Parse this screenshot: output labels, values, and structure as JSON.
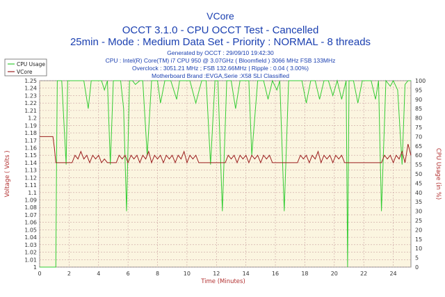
{
  "chart_data": {
    "type": "line",
    "title": "VCore",
    "subtitle": "OCCT 3.1.0 - CPU OCCT Test - Cancelled",
    "subtitle2": "25min - Mode : Medium Data Set - Priority : NORMAL - 8 threads",
    "info_lines": [
      "Generated by OCCT : 29/09/10 19:42:30",
      "CPU : Intel(R) Core(TM) i7 CPU 950 @ 3.07GHz ( Bloomfield ) 3066 MHz FSB 133MHz",
      "Overclock : 3051.21 MHz ; FSB 132.66MHz | Ripple : 0.04 ( 3.00%)",
      "Motherboard Brand :EVGA,Serie :X58 SLI Classified"
    ],
    "xlabel": "Time (Minutes)",
    "ylabel": "Voltage ( Volts )",
    "y2label": "CPU Usage (in %)",
    "xlim": [
      0,
      25.2
    ],
    "ylim": [
      1.0,
      1.25
    ],
    "y2lim": [
      0,
      100
    ],
    "x_ticks": [
      "0",
      "2",
      "4",
      "6",
      "8",
      "10",
      "12",
      "14",
      "16",
      "18",
      "20",
      "22",
      "24"
    ],
    "y_ticks": [
      "1.25",
      "1.24",
      "1.23",
      "1.22",
      "1.21",
      "1.2",
      "1.19",
      "1.18",
      "1.17",
      "1.16",
      "1.15",
      "1.14",
      "1.13",
      "1.12",
      "1.11",
      "1.1",
      "1.09",
      "1.08",
      "1.07",
      "1.06",
      "1.05",
      "1.04",
      "1.03",
      "1.02",
      "1.01",
      "1"
    ],
    "y2_ticks": [
      "100",
      "95",
      "90",
      "85",
      "80",
      "75",
      "70",
      "65",
      "60",
      "55",
      "50",
      "45",
      "40",
      "35",
      "30",
      "25",
      "20",
      "15",
      "10",
      "5",
      "0"
    ],
    "grid": true,
    "legend_position": "top-left",
    "series": [
      {
        "name": "CPU Usage",
        "axis": "right",
        "color": "#33cc33",
        "x": [
          0,
          1.1,
          1.15,
          1.2,
          1.3,
          1.5,
          1.8,
          1.9,
          2.0,
          2.5,
          3.0,
          3.3,
          3.5,
          3.8,
          4.2,
          4.4,
          4.6,
          4.8,
          5.0,
          5.2,
          5.5,
          5.7,
          5.9,
          6.1,
          6.3,
          6.5,
          6.8,
          7.0,
          7.3,
          7.6,
          8.0,
          8.2,
          8.5,
          8.9,
          9.3,
          9.5,
          9.8,
          10.2,
          10.6,
          11.0,
          11.3,
          11.6,
          11.9,
          12.1,
          12.4,
          12.7,
          13.0,
          13.3,
          13.6,
          13.9,
          14.2,
          14.4,
          14.8,
          15.2,
          15.5,
          15.8,
          16.1,
          16.3,
          16.6,
          16.9,
          17.2,
          17.6,
          17.8,
          18.1,
          18.4,
          18.7,
          19.0,
          19.3,
          19.6,
          19.9,
          20.2,
          20.5,
          20.8,
          20.9,
          21.0,
          21.3,
          21.6,
          21.9,
          22.2,
          22.5,
          22.8,
          23.0,
          23.2,
          23.5,
          23.8,
          24.0,
          24.3,
          24.6,
          24.8,
          25.0,
          25.2
        ],
        "values": [
          0,
          0,
          60,
          100,
          100,
          100,
          55,
          100,
          100,
          100,
          100,
          85,
          100,
          100,
          100,
          95,
          100,
          55,
          100,
          100,
          100,
          85,
          30,
          100,
          100,
          98,
          100,
          100,
          60,
          100,
          100,
          88,
          100,
          100,
          90,
          100,
          100,
          100,
          88,
          100,
          100,
          55,
          100,
          100,
          30,
          100,
          100,
          85,
          100,
          100,
          100,
          60,
          100,
          100,
          90,
          100,
          95,
          100,
          30,
          100,
          100,
          100,
          100,
          88,
          100,
          100,
          90,
          100,
          100,
          92,
          100,
          90,
          100,
          0,
          100,
          100,
          88,
          100,
          100,
          100,
          90,
          100,
          30,
          100,
          97,
          100,
          95,
          55,
          98,
          100,
          100
        ]
      },
      {
        "name": "VCore",
        "axis": "left",
        "color": "#9b1d1d",
        "x": [
          0,
          0.9,
          1.0,
          1.1,
          2.2,
          2.4,
          2.6,
          2.8,
          3.0,
          3.2,
          3.4,
          3.6,
          3.8,
          4.0,
          4.2,
          4.4,
          4.6,
          4.9,
          5.2,
          5.4,
          5.6,
          5.8,
          6.0,
          6.2,
          6.4,
          6.6,
          6.8,
          7.0,
          7.2,
          7.4,
          7.6,
          7.8,
          8.0,
          8.2,
          8.4,
          8.6,
          8.8,
          9.0,
          9.2,
          9.4,
          9.6,
          9.8,
          10.0,
          10.2,
          10.4,
          10.6,
          10.8,
          11.0,
          11.2,
          11.4,
          12.6,
          12.8,
          13.0,
          13.2,
          13.4,
          13.6,
          13.8,
          14.0,
          14.2,
          14.4,
          14.6,
          14.8,
          15.0,
          15.2,
          15.4,
          15.6,
          15.8,
          16.0,
          16.2,
          17.5,
          17.7,
          17.9,
          18.1,
          18.3,
          18.5,
          18.7,
          18.9,
          19.1,
          19.3,
          19.5,
          19.7,
          19.9,
          20.1,
          20.3,
          20.5,
          20.7,
          20.9,
          21.0,
          23.2,
          23.4,
          23.6,
          23.8,
          24.0,
          24.2,
          24.4,
          24.6,
          24.8,
          25.0,
          25.2
        ],
        "values": [
          1.175,
          1.175,
          1.16,
          1.14,
          1.14,
          1.15,
          1.145,
          1.155,
          1.145,
          1.15,
          1.14,
          1.15,
          1.145,
          1.15,
          1.14,
          1.145,
          1.14,
          1.14,
          1.14,
          1.15,
          1.145,
          1.15,
          1.14,
          1.15,
          1.145,
          1.15,
          1.14,
          1.15,
          1.145,
          1.155,
          1.14,
          1.15,
          1.145,
          1.15,
          1.14,
          1.15,
          1.145,
          1.15,
          1.14,
          1.15,
          1.145,
          1.155,
          1.14,
          1.15,
          1.145,
          1.15,
          1.14,
          1.14,
          1.14,
          1.14,
          1.14,
          1.15,
          1.145,
          1.15,
          1.14,
          1.15,
          1.145,
          1.15,
          1.14,
          1.15,
          1.145,
          1.15,
          1.14,
          1.15,
          1.145,
          1.15,
          1.14,
          1.14,
          1.14,
          1.14,
          1.15,
          1.145,
          1.15,
          1.14,
          1.15,
          1.145,
          1.155,
          1.14,
          1.15,
          1.145,
          1.15,
          1.14,
          1.15,
          1.145,
          1.15,
          1.14,
          1.14,
          1.14,
          1.14,
          1.15,
          1.145,
          1.15,
          1.14,
          1.15,
          1.145,
          1.155,
          1.14,
          1.165,
          1.15
        ]
      }
    ]
  }
}
